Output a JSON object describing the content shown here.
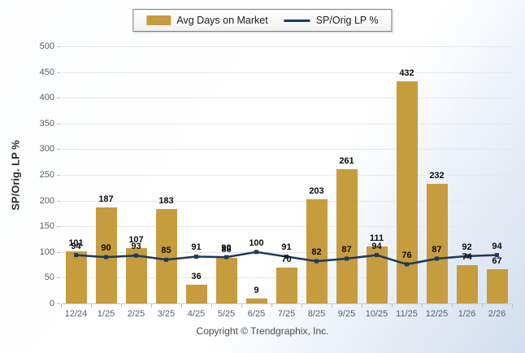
{
  "legend": {
    "bar_label": "Avg Days on Market",
    "line_label": "SP/Orig LP %"
  },
  "footer": "Copyright © Trendgraphix, Inc.",
  "colors": {
    "bar": "#c69c3f",
    "line": "#1b3a5e",
    "grid": "#e7e7e7",
    "axis_text": "#5a5a5a",
    "value_text": "#0d0d0d",
    "bg_tint": "#d2deee"
  },
  "chart_data": {
    "type": "bar",
    "title": "",
    "xlabel": "",
    "ylabel": "SP/Orig. LP %",
    "ylim": [
      0,
      500
    ],
    "yticks": [
      0,
      50,
      100,
      150,
      200,
      250,
      300,
      350,
      400,
      450,
      500
    ],
    "grid": true,
    "legend_position": "top",
    "categories": [
      "12/24",
      "1/25",
      "2/25",
      "3/25",
      "4/25",
      "5/25",
      "6/25",
      "7/25",
      "8/25",
      "9/25",
      "10/25",
      "11/25",
      "12/25",
      "1/26",
      "2/26"
    ],
    "series": [
      {
        "name": "Avg Days on Market",
        "type": "bar",
        "values": [
          101,
          187,
          107,
          183,
          36,
          88,
          9,
          70,
          203,
          261,
          111,
          432,
          232,
          74,
          67
        ]
      },
      {
        "name": "SP/Orig LP %",
        "type": "line",
        "values": [
          94,
          90,
          93,
          85,
          91,
          90,
          100,
          91,
          82,
          87,
          94,
          76,
          87,
          92,
          94
        ]
      }
    ]
  }
}
